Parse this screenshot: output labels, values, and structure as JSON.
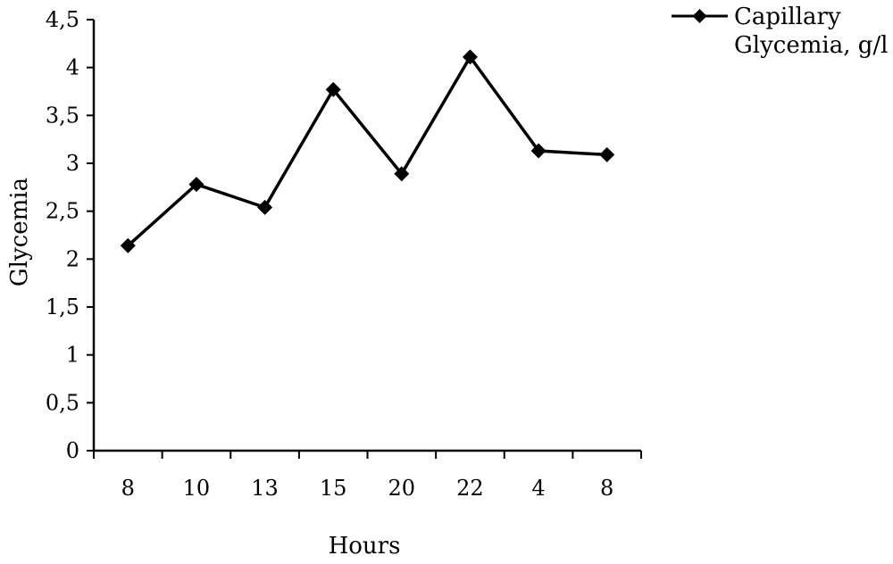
{
  "chart_data": {
    "type": "line",
    "categories": [
      "8",
      "10",
      "13",
      "15",
      "20",
      "22",
      "4",
      "8"
    ],
    "series": [
      {
        "name": "Capillary Glycemia, g/l",
        "values": [
          2.14,
          2.78,
          2.54,
          3.77,
          2.89,
          4.11,
          3.13,
          3.09
        ]
      }
    ],
    "xlabel": "Hours",
    "ylabel": "Glycemia",
    "ylim": [
      0,
      4.5
    ],
    "yticks": [
      "0",
      "0,5",
      "1",
      "1,5",
      "2",
      "2,5",
      "3",
      "3,5",
      "4",
      "4,5"
    ],
    "legend_lines": [
      "Capillary",
      "Glycemia, g/l"
    ],
    "legend_position": "top-right",
    "grid": false,
    "marker": "diamond",
    "color": "#000000"
  }
}
